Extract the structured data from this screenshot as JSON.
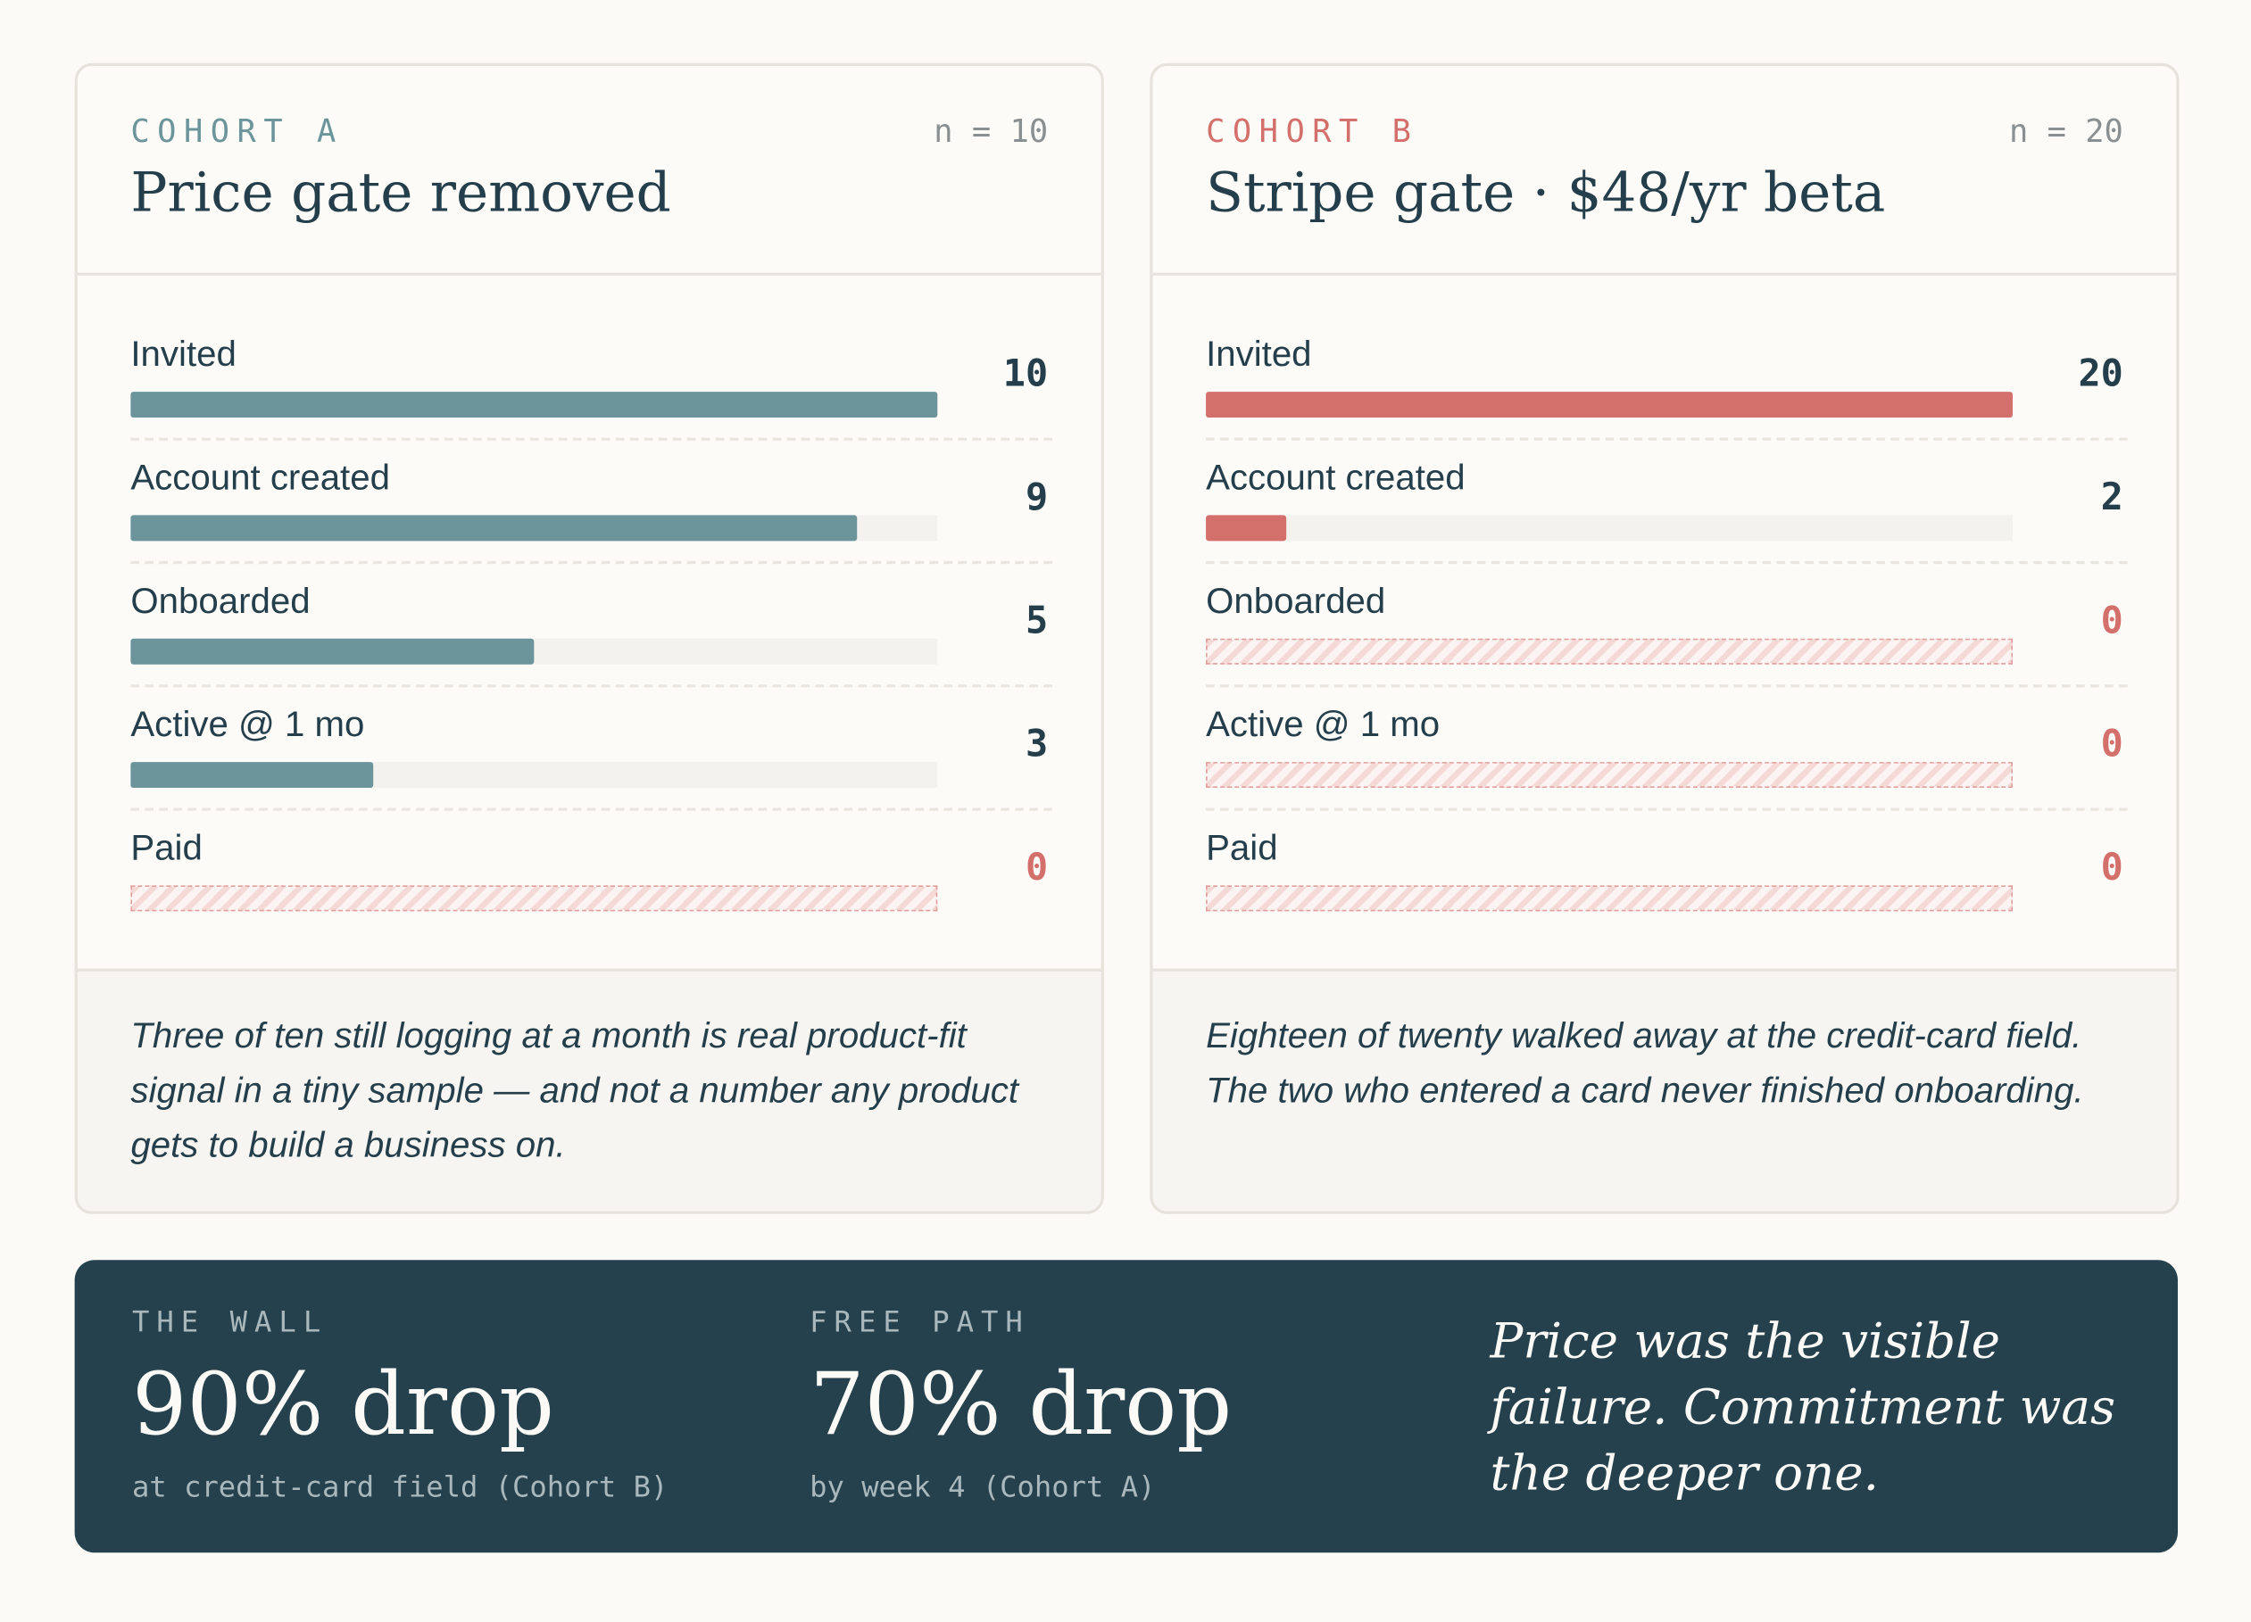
{
  "cohorts": [
    {
      "eyebrow": "COHORT A",
      "n": {
        "value": 10,
        "label": "n = 10"
      },
      "title": "Price gate removed",
      "color": "#6b959b",
      "stages": [
        {
          "label": "Invited",
          "value": 10
        },
        {
          "label": "Account created",
          "value": 9
        },
        {
          "label": "Onboarded",
          "value": 5
        },
        {
          "label": "Active @ 1 mo",
          "value": 3
        },
        {
          "label": "Paid",
          "value": 0
        }
      ],
      "note": "Three of ten still logging at a month is real product-fit signal in a tiny sample — and not a number any product gets to build a business on."
    },
    {
      "eyebrow": "COHORT B",
      "n": {
        "value": 20,
        "label": "n = 20"
      },
      "title": "Stripe gate · $48/yr beta",
      "color": "#d4706c",
      "stages": [
        {
          "label": "Invited",
          "value": 20
        },
        {
          "label": "Account created",
          "value": 2
        },
        {
          "label": "Onboarded",
          "value": 0
        },
        {
          "label": "Active @ 1 mo",
          "value": 0
        },
        {
          "label": "Paid",
          "value": 0
        }
      ],
      "note": "Eighteen of twenty walked away at the credit-card field. The two who entered a card never finished onboarding."
    }
  ],
  "summary": {
    "stats": [
      {
        "label": "THE WALL",
        "value": "90% drop",
        "caption": "at credit-card field (Cohort B)"
      },
      {
        "label": "FREE PATH",
        "value": "70% drop",
        "caption": "by week 4 (Cohort A)"
      }
    ],
    "quote": "Price was the visible failure. Commitment was the deeper one."
  }
}
